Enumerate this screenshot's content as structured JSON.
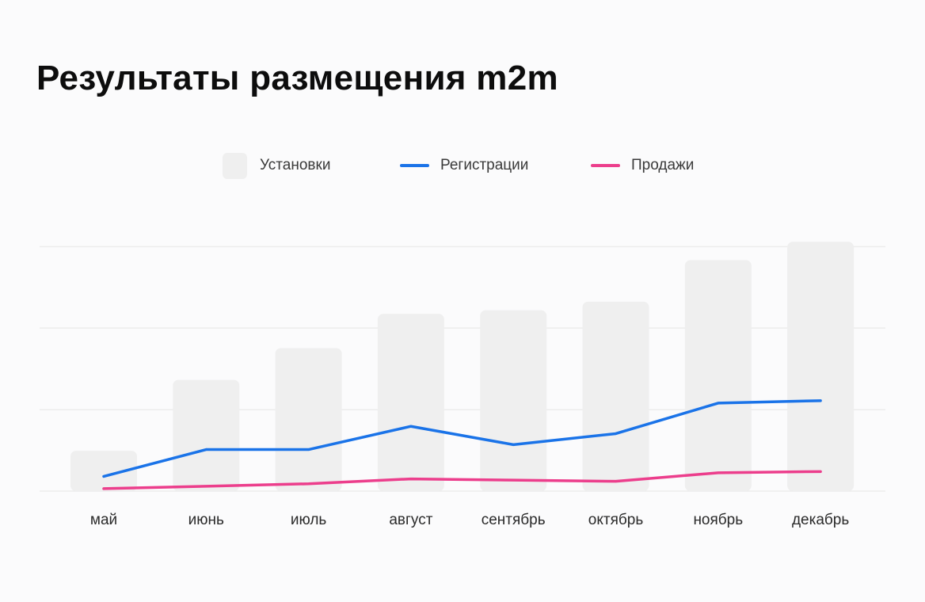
{
  "title": "Результаты размещения m2m",
  "legend": {
    "installs": "Установки",
    "registrations": "Регистрации",
    "sales": "Продажи"
  },
  "colors": {
    "installs": "#efefef",
    "registrations": "#1a73e8",
    "sales": "#ec3e8c",
    "grid": "#ececec"
  },
  "chart_data": {
    "type": "bar",
    "categories": [
      "май",
      "июнь",
      "июль",
      "август",
      "сентябрь",
      "октябрь",
      "ноябрь",
      "декабрь"
    ],
    "series": [
      {
        "name": "Установки",
        "type": "bar",
        "values": [
          16.5,
          45.5,
          58.5,
          72.5,
          74,
          77.5,
          94.5,
          102
        ]
      },
      {
        "name": "Регистрации",
        "type": "line",
        "values": [
          6,
          17,
          17,
          26.5,
          19,
          23.5,
          36,
          37
        ]
      },
      {
        "name": "Продажи",
        "type": "line",
        "values": [
          1,
          2,
          3,
          5,
          4.5,
          4,
          7.5,
          8
        ]
      }
    ],
    "ylim": [
      0,
      105
    ],
    "gridlines": [
      0,
      33.3,
      66.7,
      100
    ],
    "grid": true,
    "legend_position": "top",
    "y_axis_labels": false
  }
}
